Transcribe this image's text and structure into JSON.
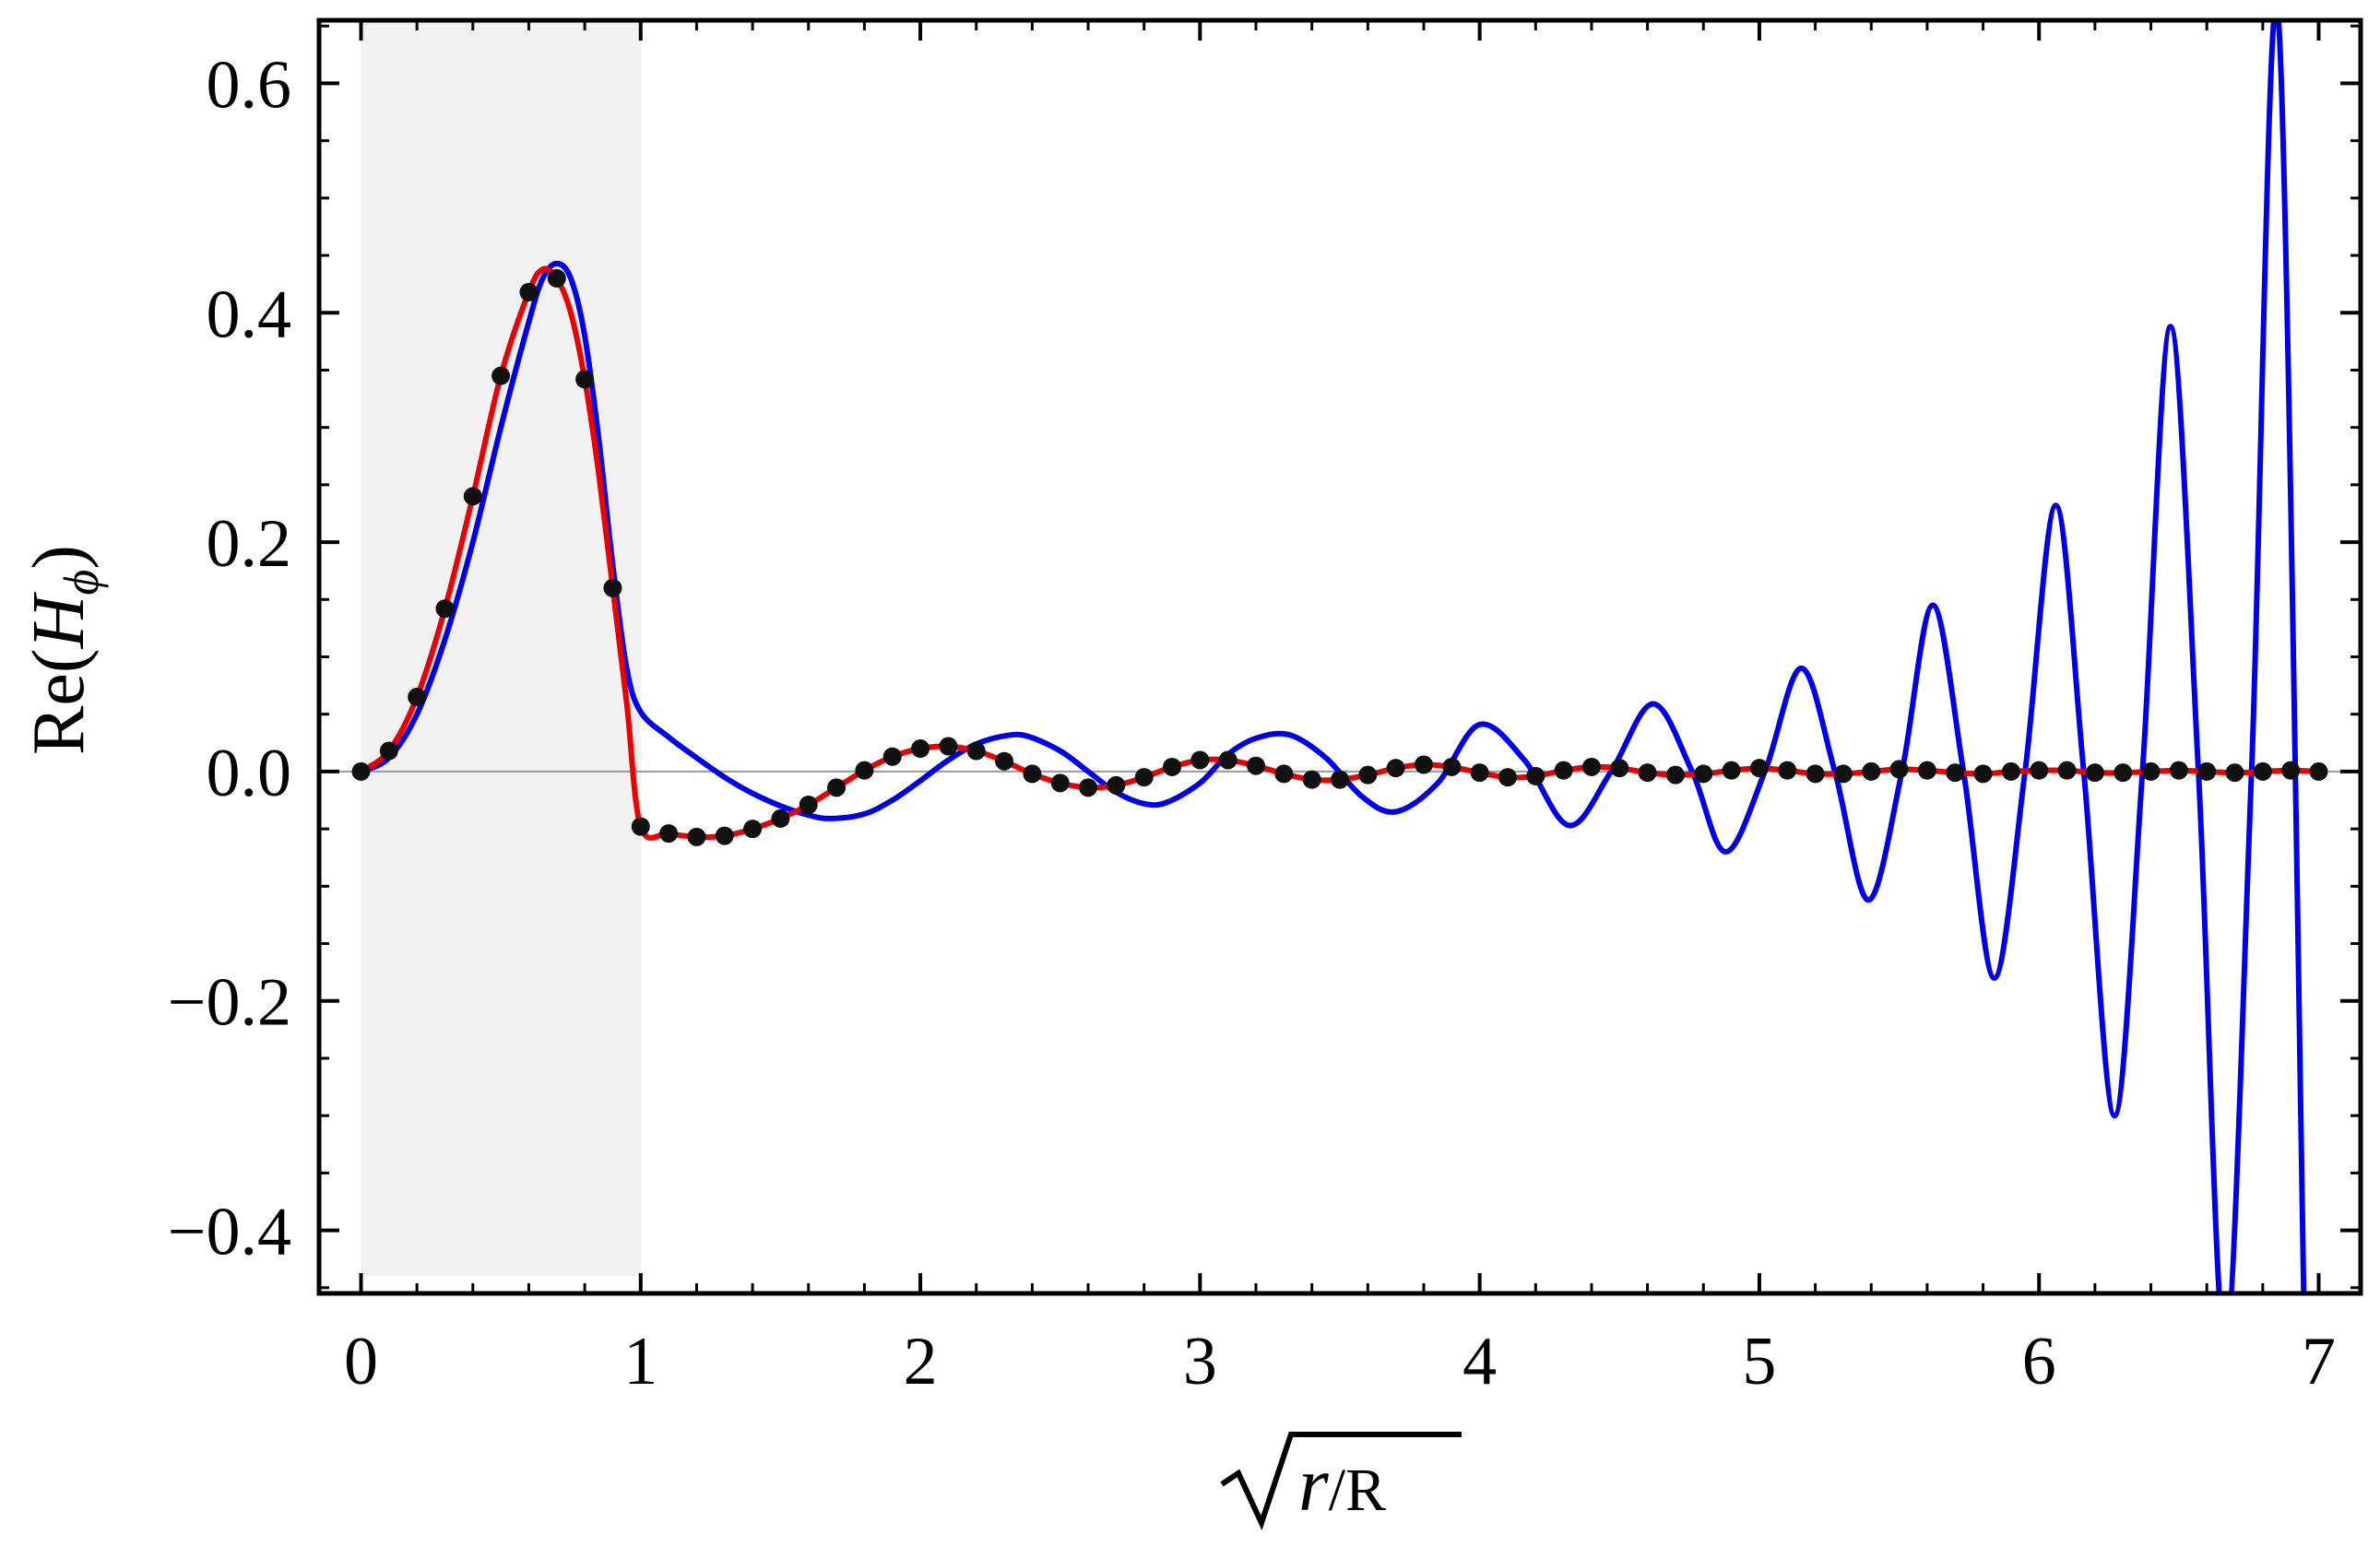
{
  "chart_data": {
    "type": "line",
    "xlabel": "√r/R",
    "xlabel_parts": {
      "radicand_var": "r",
      "radicand_rest": "/R"
    },
    "ylabel": "Re(Hϕ)",
    "ylabel_parts": {
      "prefix": "Re(",
      "var": "H",
      "sub": "ϕ",
      "suffix": ")"
    },
    "xlim": [
      -0.15,
      7.15
    ],
    "ylim": [
      -0.455,
      0.655
    ],
    "x_ticks": [
      0,
      1,
      2,
      3,
      4,
      5,
      6,
      7
    ],
    "x_tick_labels": [
      "0",
      "1",
      "2",
      "3",
      "4",
      "5",
      "6",
      "7"
    ],
    "y_ticks": [
      -0.4,
      -0.2,
      0.0,
      0.2,
      0.4,
      0.6
    ],
    "y_tick_labels": [
      "−0.4",
      "−0.2",
      "0.0",
      "0.2",
      "0.4",
      "0.6"
    ],
    "shaded_region": {
      "x": [
        0,
        1
      ],
      "y": [
        -0.44,
        0.655
      ],
      "color": "#f1f1f1"
    },
    "zero_line": true,
    "grid": false,
    "legend": "none",
    "series": [
      {
        "style": "line",
        "color": "#ee0000",
        "x": [
          0,
          0.1,
          0.2,
          0.3,
          0.4,
          0.5,
          0.6,
          0.65,
          0.7,
          0.75,
          0.8,
          0.85,
          0.9,
          0.95,
          1.0,
          1.1,
          1.2,
          1.3,
          1.4,
          1.5,
          1.6,
          1.7,
          1.8,
          1.9,
          2.0,
          2.1,
          2.2,
          2.3,
          2.4,
          2.5,
          2.6,
          2.7,
          2.8,
          2.9,
          3.0,
          3.1,
          3.2,
          3.3,
          3.4,
          3.5,
          3.6,
          3.7,
          3.8,
          3.9,
          4.0,
          4.1,
          4.2,
          4.3,
          4.4,
          4.5,
          4.6,
          4.7,
          4.8,
          4.9,
          5.0,
          5.1,
          5.2,
          5.3,
          5.4,
          5.5,
          5.6,
          5.7,
          5.8,
          5.9,
          6.0,
          6.1,
          6.2,
          6.3,
          6.4,
          6.5,
          6.6,
          6.7,
          6.8,
          6.9,
          7.0
        ],
        "y": [
          0,
          0.018,
          0.065,
          0.142,
          0.24,
          0.345,
          0.418,
          0.438,
          0.43,
          0.4,
          0.342,
          0.26,
          0.16,
          0.06,
          -0.048,
          -0.054,
          -0.057,
          -0.056,
          -0.05,
          -0.041,
          -0.029,
          -0.014,
          0.001,
          0.013,
          0.02,
          0.022,
          0.018,
          0.009,
          -0.002,
          -0.01,
          -0.014,
          -0.012,
          -0.005,
          0.004,
          0.01,
          0.01,
          0.005,
          -0.002,
          -0.007,
          -0.007,
          -0.003,
          0.003,
          0.006,
          0.004,
          -0.001,
          -0.005,
          -0.004,
          0.001,
          0.004,
          0.003,
          -0.001,
          -0.003,
          -0.002,
          0.001,
          0.003,
          0.001,
          -0.002,
          -0.002,
          0.0,
          0.002,
          0.001,
          -0.001,
          -0.002,
          0.0,
          0.001,
          0.001,
          -0.001,
          -0.001,
          0.0,
          0.001,
          0.0,
          -0.001,
          0.0,
          0.001,
          0.0
        ]
      },
      {
        "style": "line",
        "color": "#0000ee",
        "x": [
          0,
          0.1,
          0.2,
          0.3,
          0.4,
          0.5,
          0.6,
          0.65,
          0.7,
          0.75,
          0.8,
          0.85,
          0.9,
          0.95,
          1.0,
          1.1,
          1.2,
          1.3,
          1.4,
          1.5,
          1.6,
          1.68,
          1.8,
          1.9,
          2.0,
          2.1,
          2.2,
          2.3,
          2.38,
          2.5,
          2.6,
          2.7,
          2.8,
          2.88,
          3.0,
          3.1,
          3.2,
          3.32,
          3.45,
          3.58,
          3.7,
          3.85,
          4.0,
          4.16,
          4.32,
          4.47,
          4.62,
          4.76,
          4.88,
          5.02,
          5.15,
          5.27,
          5.39,
          5.51,
          5.62,
          5.73,
          5.84,
          5.95,
          6.06,
          6.16,
          6.27,
          6.37,
          6.47,
          6.57,
          6.665,
          6.76,
          6.855,
          6.95
        ],
        "y": [
          0,
          0.012,
          0.05,
          0.115,
          0.2,
          0.3,
          0.392,
          0.43,
          0.443,
          0.43,
          0.38,
          0.29,
          0.18,
          0.09,
          0.052,
          0.03,
          0.012,
          -0.005,
          -0.019,
          -0.03,
          -0.038,
          -0.041,
          -0.037,
          -0.025,
          -0.008,
          0.01,
          0.024,
          0.031,
          0.031,
          0.018,
          0.0,
          -0.018,
          -0.028,
          -0.027,
          -0.01,
          0.015,
          0.029,
          0.032,
          0.012,
          -0.022,
          -0.035,
          -0.01,
          0.041,
          0.01,
          -0.047,
          0.0,
          0.059,
          0.0,
          -0.07,
          0.0,
          0.09,
          0.0,
          -0.112,
          0.0,
          0.145,
          0.0,
          -0.18,
          0.0,
          0.232,
          0.0,
          -0.3,
          0.0,
          0.388,
          0.0,
          -0.5,
          0.0,
          0.66,
          -0.5
        ]
      },
      {
        "style": "markers",
        "color": "#111111",
        "x": [
          0,
          0.1,
          0.2,
          0.3,
          0.4,
          0.5,
          0.6,
          0.7,
          0.8,
          0.9,
          1.0,
          1.1,
          1.2,
          1.3,
          1.4,
          1.5,
          1.6,
          1.7,
          1.8,
          1.9,
          2.0,
          2.1,
          2.2,
          2.3,
          2.4,
          2.5,
          2.6,
          2.7,
          2.8,
          2.9,
          3.0,
          3.1,
          3.2,
          3.3,
          3.4,
          3.5,
          3.6,
          3.7,
          3.8,
          3.9,
          4.0,
          4.1,
          4.2,
          4.3,
          4.4,
          4.5,
          4.6,
          4.7,
          4.8,
          4.9,
          5.0,
          5.1,
          5.2,
          5.3,
          5.4,
          5.5,
          5.6,
          5.7,
          5.8,
          5.9,
          6.0,
          6.1,
          6.2,
          6.3,
          6.4,
          6.5,
          6.6,
          6.7,
          6.8,
          6.9,
          7.0
        ],
        "y": [
          0,
          0.018,
          0.065,
          0.142,
          0.24,
          0.345,
          0.418,
          0.43,
          0.342,
          0.16,
          -0.048,
          -0.054,
          -0.057,
          -0.056,
          -0.05,
          -0.041,
          -0.029,
          -0.014,
          0.001,
          0.013,
          0.02,
          0.022,
          0.018,
          0.009,
          -0.002,
          -0.01,
          -0.014,
          -0.012,
          -0.005,
          0.004,
          0.01,
          0.01,
          0.005,
          -0.002,
          -0.007,
          -0.007,
          -0.003,
          0.003,
          0.006,
          0.004,
          -0.001,
          -0.005,
          -0.004,
          0.001,
          0.004,
          0.003,
          -0.001,
          -0.003,
          -0.002,
          0.001,
          0.003,
          0.001,
          -0.002,
          -0.002,
          0.0,
          0.002,
          0.001,
          -0.001,
          -0.002,
          0.0,
          0.001,
          0.001,
          -0.001,
          -0.001,
          0.0,
          0.001,
          0.0,
          -0.001,
          0.0,
          0.001,
          0.0
        ]
      }
    ]
  }
}
